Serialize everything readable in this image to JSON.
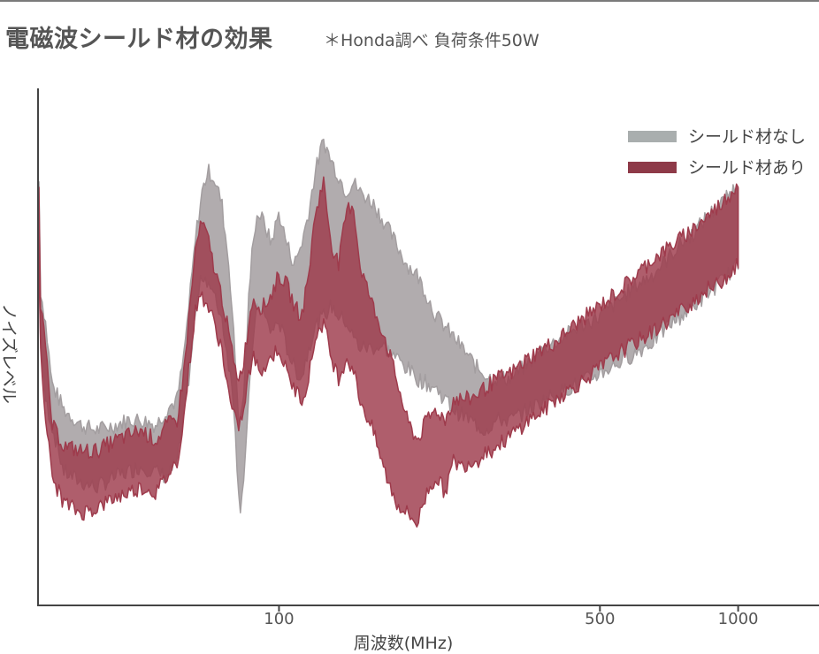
{
  "header": {
    "title": "電磁波シールド材の効果",
    "note": "＊Honda調べ 負荷条件50W"
  },
  "colors": {
    "without_shield": "#a39ea0",
    "with_shield": "#9e3b4c",
    "without_shield_legend": "#a9aeae",
    "with_shield_legend": "#8e3a48",
    "axis": "#444444"
  },
  "chart_data": {
    "type": "area",
    "xscale": "log",
    "xlabel": "周波数(MHz)",
    "ylabel": "ノイズレベル",
    "xlim": [
      30,
      1500
    ],
    "ylim": [
      0,
      100
    ],
    "y_tick_labels": false,
    "grid": false,
    "legend_position": "top-right",
    "xticks": [
      {
        "value": 100,
        "label": "100"
      },
      {
        "value": 500,
        "label": "500"
      },
      {
        "value": 1000,
        "label": "1000"
      }
    ],
    "series": [
      {
        "name": "シールド材なし",
        "x": [
          30,
          31,
          32,
          34,
          37,
          40,
          44,
          47,
          50,
          54,
          57,
          60,
          62,
          64,
          66,
          68,
          70,
          72,
          75,
          78,
          80,
          82,
          84,
          86,
          88,
          90,
          93,
          96,
          100,
          104,
          108,
          112,
          116,
          120,
          125,
          130,
          135,
          140,
          145,
          150,
          160,
          170,
          180,
          190,
          200,
          210,
          220,
          230,
          240,
          250,
          260,
          270,
          280,
          290,
          300,
          320,
          350,
          380,
          400,
          450,
          500,
          550,
          600,
          650,
          700,
          750,
          800,
          850,
          900,
          950,
          1000
        ],
        "low": [
          56,
          40,
          35,
          26,
          24,
          23,
          25,
          26,
          27,
          26,
          25,
          28,
          36,
          46,
          58,
          64,
          63,
          60,
          56,
          46,
          38,
          18,
          26,
          40,
          53,
          58,
          56,
          53,
          55,
          50,
          46,
          44,
          50,
          54,
          56,
          58,
          56,
          55,
          52,
          50,
          50,
          50,
          48,
          46,
          44,
          43,
          42,
          40,
          38,
          37,
          36,
          35,
          34,
          35,
          36,
          36,
          38,
          40,
          41,
          43,
          45,
          47,
          49,
          51,
          54,
          56,
          58,
          60,
          62,
          64,
          66
        ],
        "high": [
          63,
          55,
          43,
          38,
          35,
          34,
          35,
          36,
          36,
          35,
          38,
          40,
          48,
          60,
          72,
          80,
          84,
          83,
          78,
          65,
          50,
          34,
          42,
          60,
          72,
          76,
          74,
          70,
          76,
          70,
          66,
          70,
          76,
          84,
          90,
          86,
          83,
          80,
          82,
          80,
          78,
          74,
          70,
          66,
          64,
          60,
          56,
          54,
          52,
          50,
          48,
          46,
          45,
          44,
          44,
          44,
          47,
          50,
          51,
          54,
          56,
          59,
          62,
          64,
          67,
          70,
          72,
          75,
          77,
          79,
          82
        ]
      },
      {
        "name": "シールド材あり",
        "x": [
          30,
          31,
          32,
          34,
          37,
          40,
          44,
          47,
          50,
          54,
          57,
          60,
          62,
          64,
          66,
          68,
          70,
          72,
          75,
          78,
          80,
          82,
          84,
          86,
          88,
          90,
          93,
          96,
          100,
          104,
          108,
          112,
          116,
          120,
          125,
          130,
          135,
          140,
          145,
          150,
          160,
          170,
          180,
          190,
          200,
          210,
          220,
          230,
          240,
          250,
          260,
          270,
          280,
          290,
          300,
          320,
          350,
          380,
          400,
          450,
          500,
          550,
          600,
          650,
          700,
          750,
          800,
          850,
          900,
          950,
          1000
        ],
        "low": [
          55,
          37,
          25,
          20,
          18,
          19,
          21,
          22,
          23,
          22,
          25,
          28,
          36,
          48,
          58,
          60,
          58,
          55,
          50,
          40,
          36,
          35,
          38,
          45,
          48,
          46,
          46,
          48,
          50,
          45,
          42,
          40,
          44,
          52,
          55,
          48,
          44,
          48,
          46,
          40,
          34,
          26,
          20,
          18,
          16,
          22,
          25,
          22,
          28,
          27,
          28,
          28,
          30,
          30,
          31,
          33,
          36,
          38,
          40,
          43,
          46,
          49,
          51,
          53,
          55,
          57,
          59,
          61,
          62,
          64,
          66
        ],
        "high": [
          62,
          50,
          35,
          31,
          30,
          30,
          32,
          33,
          34,
          32,
          35,
          36,
          45,
          58,
          70,
          74,
          71,
          66,
          60,
          52,
          46,
          44,
          48,
          55,
          60,
          58,
          58,
          60,
          64,
          62,
          58,
          56,
          64,
          76,
          82,
          70,
          66,
          76,
          78,
          66,
          58,
          52,
          44,
          36,
          32,
          36,
          38,
          36,
          40,
          40,
          40,
          41,
          42,
          43,
          44,
          45,
          48,
          50,
          51,
          55,
          58,
          61,
          64,
          67,
          69,
          71,
          73,
          75,
          77,
          79,
          82
        ]
      }
    ]
  }
}
